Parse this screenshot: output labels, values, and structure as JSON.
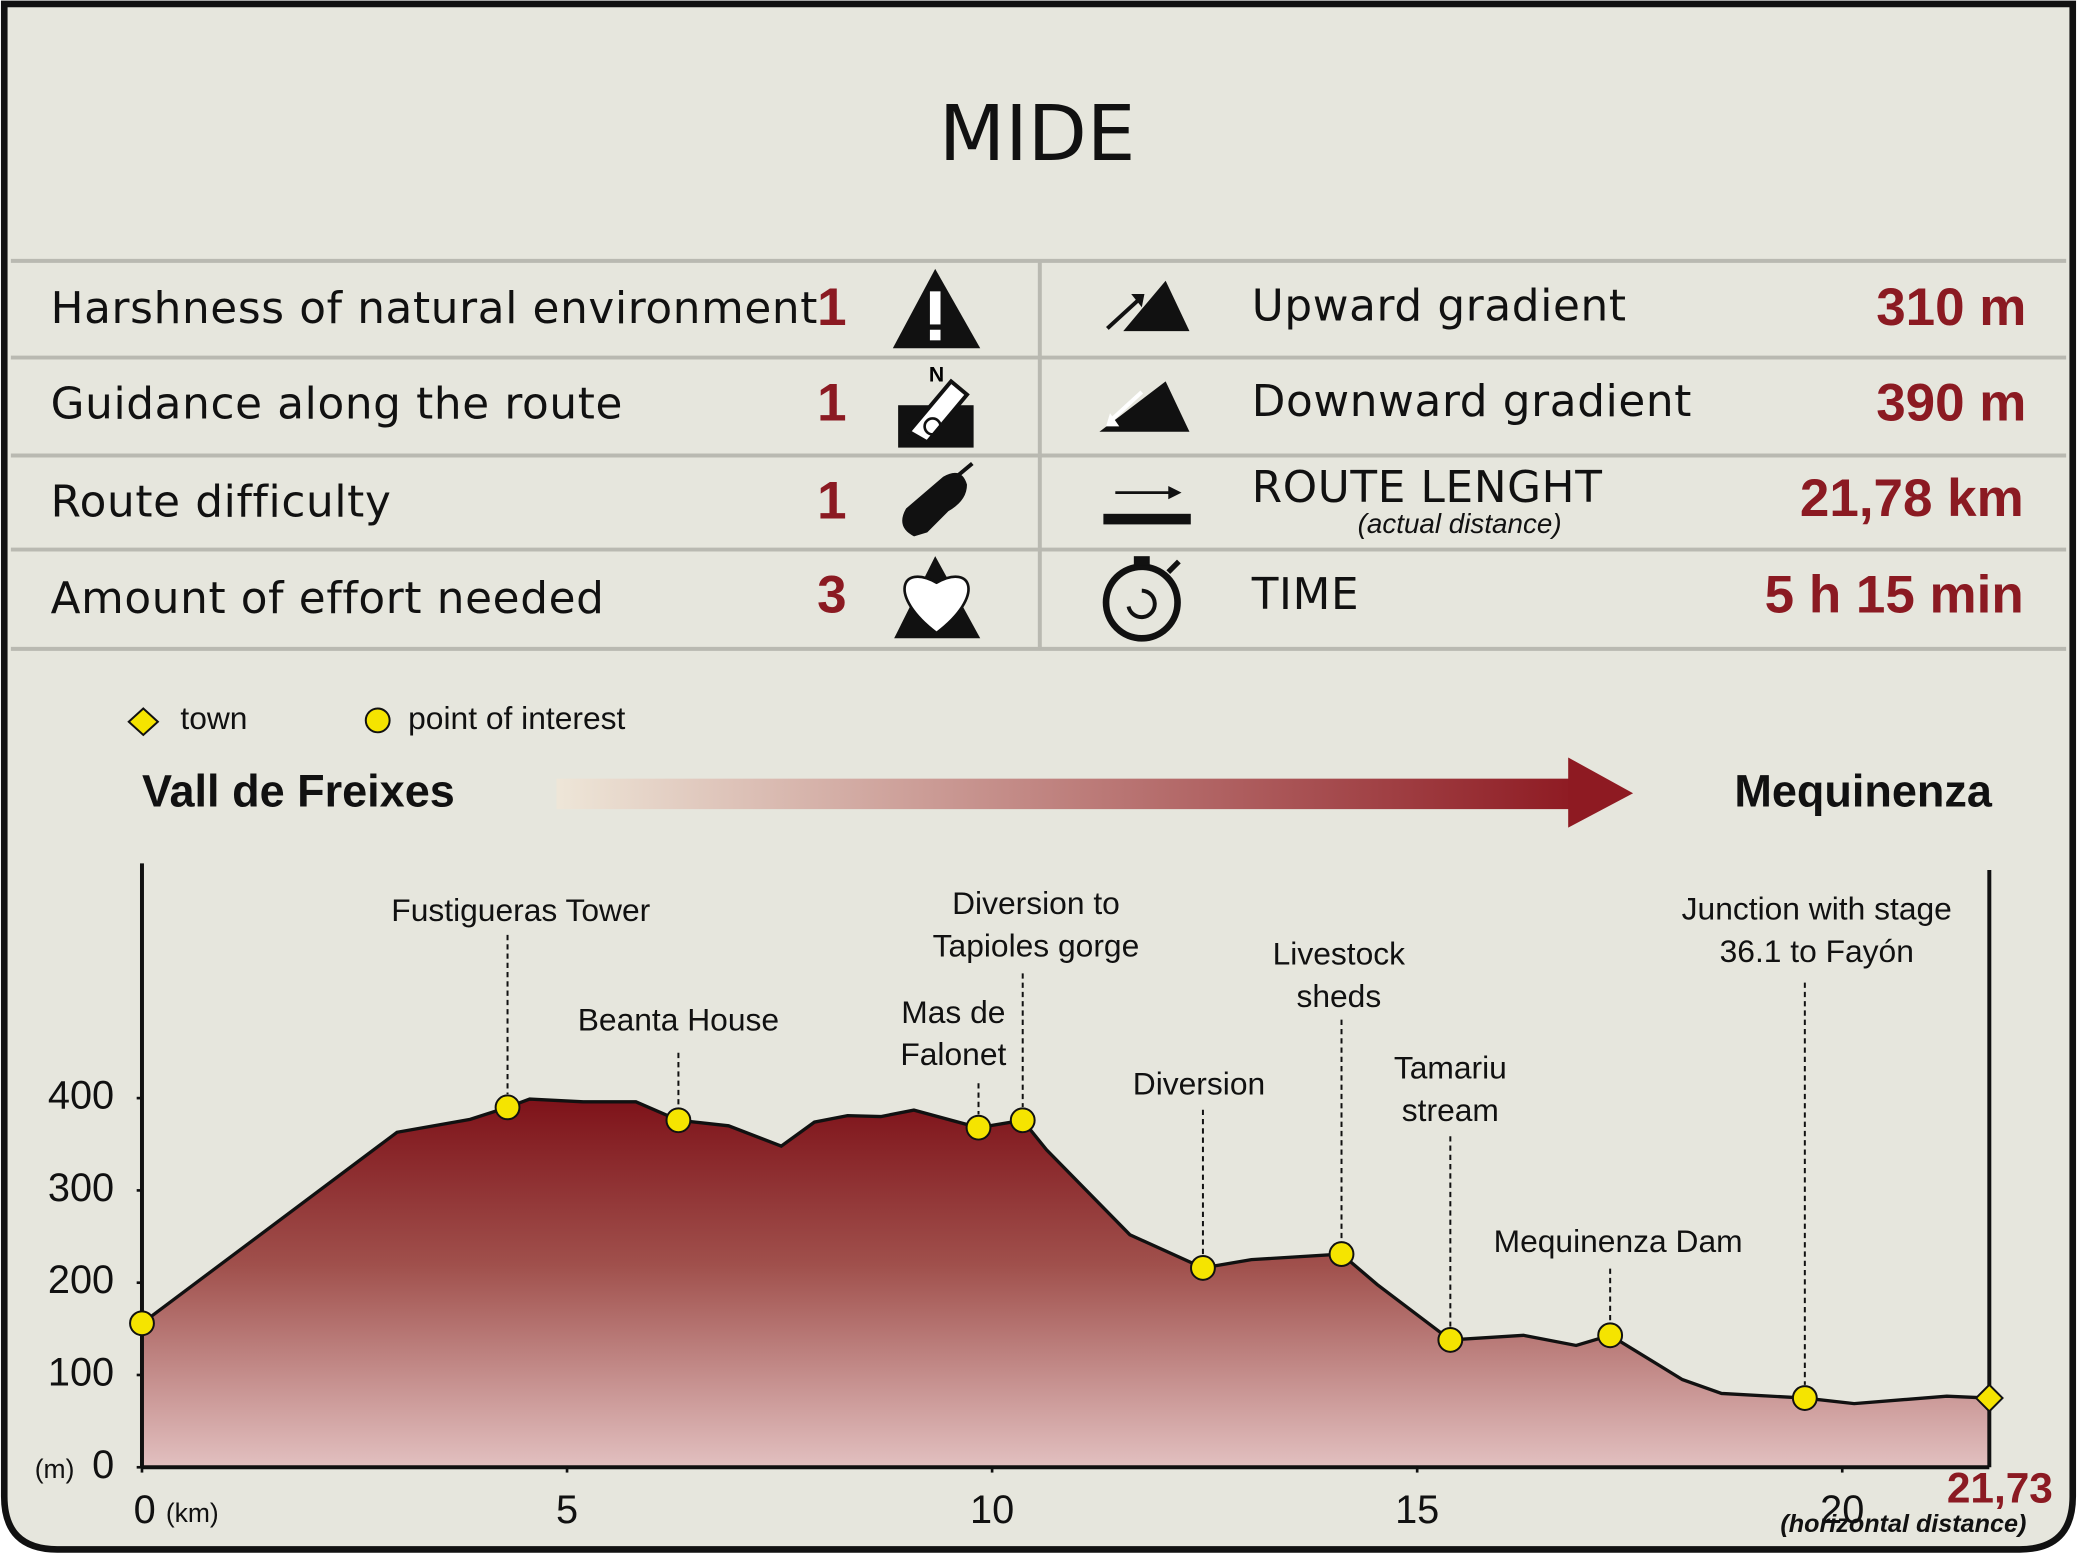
{
  "title": "MIDE",
  "mide": {
    "left": [
      {
        "label": "Harshness of natural environment",
        "value": 1
      },
      {
        "label": "Guidance along the route",
        "value": 1
      },
      {
        "label": "Route difficulty",
        "value": 1
      },
      {
        "label": "Amount of effort needed",
        "value": 3
      }
    ],
    "right": [
      {
        "label": "Upward gradient",
        "value": "310 m"
      },
      {
        "label": "Downward gradient",
        "value": "390 m"
      },
      {
        "label": "ROUTE LENGHT",
        "note": "(actual distance)",
        "value": "21,78 km"
      },
      {
        "label": "TIME",
        "value": "5 h 15 min"
      }
    ]
  },
  "chart_data": {
    "type": "area",
    "start": "Vall de Freixes",
    "end": "Mequinenza",
    "x_label": "(km)",
    "y_label": "(m)",
    "end_label": "21,73",
    "end_note": "(horizontal distance)",
    "legend": [
      "town",
      "point of interest"
    ],
    "color": "#8b1a22",
    "x": [
      0,
      3.0,
      3.86,
      4.3,
      4.56,
      5.19,
      5.81,
      6.31,
      6.9,
      7.52,
      7.91,
      8.3,
      8.69,
      9.08,
      9.84,
      10.36,
      10.64,
      11.62,
      12.48,
      13.05,
      14.11,
      14.53,
      15.39,
      16.25,
      16.87,
      17.27,
      18.12,
      18.58,
      19.56,
      20.14,
      21.23,
      21.73
    ],
    "values": [
      156,
      363,
      377,
      390,
      399,
      396,
      396,
      376,
      370,
      348,
      374,
      381,
      380,
      387,
      368,
      376,
      344,
      252,
      216,
      225,
      231,
      198,
      138,
      143,
      132,
      143,
      95,
      80,
      75,
      69,
      77,
      75
    ],
    "points": {
      "x": [
        0,
        4.3,
        6.31,
        9.84,
        10.36,
        12.48,
        14.11,
        15.39,
        17.27,
        19.56
      ],
      "values": [
        156,
        390,
        376,
        368,
        376,
        216,
        231,
        138,
        143,
        75
      ],
      "labels": [
        null,
        [
          "Fustigueras Tower"
        ],
        [
          "Beanta House"
        ],
        [
          "Mas de",
          "Falonet"
        ],
        [
          "Diversion to",
          "Tapioles gorge"
        ],
        [
          "Diversion"
        ],
        [
          "Livestock",
          "sheds"
        ],
        [
          "Tamariu",
          "stream"
        ],
        [
          "Mequinenza Dam"
        ],
        [
          "Junction with stage",
          "36.1 to Fayón"
        ]
      ]
    },
    "towns": {
      "x": [
        21.73
      ],
      "values": [
        75
      ]
    },
    "xlim": [
      0,
      21.73
    ],
    "ylim": [
      0,
      650
    ],
    "xticks": [
      0,
      5,
      10,
      15,
      20
    ],
    "yticks": [
      0,
      100,
      200,
      300,
      400
    ]
  }
}
